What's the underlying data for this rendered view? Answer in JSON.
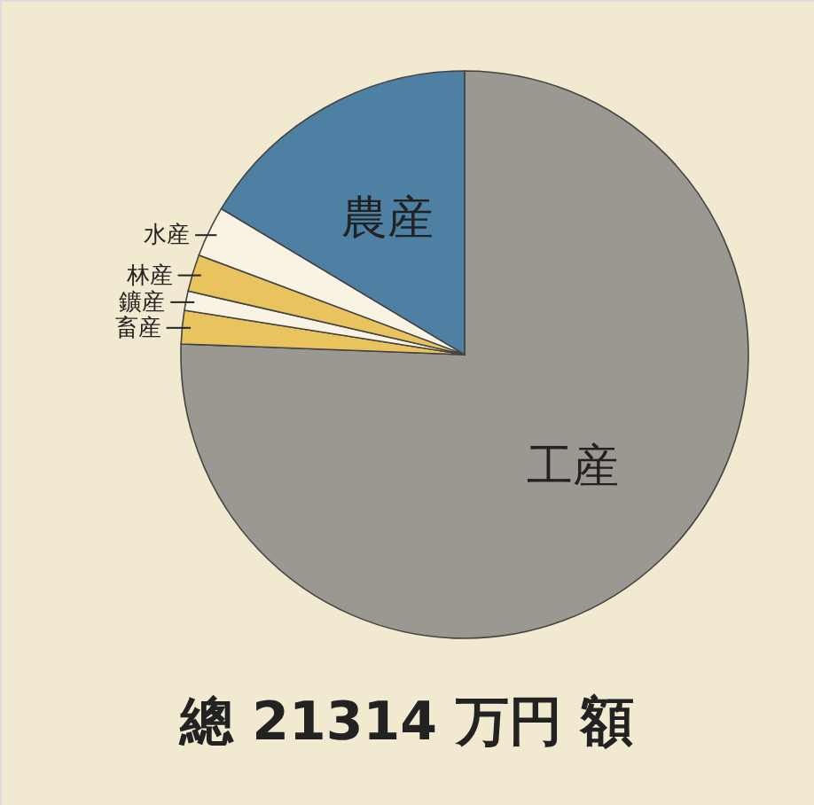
{
  "chart_data": {
    "type": "pie",
    "categories": [
      "工産",
      "畜産",
      "鑛産",
      "林産",
      "水産",
      "農産"
    ],
    "values": [
      75.6,
      1.9,
      1.1,
      2.1,
      2.9,
      16.4
    ],
    "colors": [
      "#9b9791",
      "#e9c35e",
      "#f8f3e3",
      "#e9c35e",
      "#f8f3e3",
      "#4d80a3"
    ],
    "annotations": [
      "總 21314 万円 額"
    ]
  }
}
